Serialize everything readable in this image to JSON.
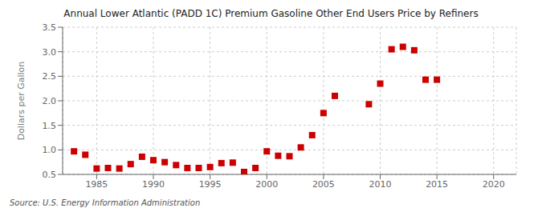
{
  "chart_data": {
    "type": "scatter",
    "title": "Annual Lower Atlantic (PADD 1C) Premium Gasoline Other End Users Price by Refiners",
    "ylabel": "Dollars per Gallon",
    "source": "Source: U.S. Energy Information Administration",
    "x": [
      1983,
      1984,
      1985,
      1986,
      1987,
      1988,
      1989,
      1990,
      1991,
      1992,
      1993,
      1994,
      1995,
      1996,
      1997,
      1998,
      1999,
      2000,
      2001,
      2002,
      2003,
      2004,
      2005,
      2006,
      2009,
      2010,
      2011,
      2012,
      2013,
      2014,
      2015
    ],
    "values": [
      0.97,
      0.9,
      0.62,
      0.63,
      0.62,
      0.71,
      0.86,
      0.79,
      0.75,
      0.69,
      0.63,
      0.63,
      0.65,
      0.73,
      0.74,
      0.55,
      0.63,
      0.97,
      0.88,
      0.87,
      1.05,
      1.3,
      1.75,
      2.1,
      1.93,
      2.35,
      3.05,
      3.1,
      3.03,
      2.43,
      2.43
    ],
    "color": "#cc0000",
    "marker": "square",
    "xlim": [
      1982,
      2022
    ],
    "ylim": [
      0.5,
      3.5
    ],
    "xticks": [
      1985,
      1990,
      1995,
      2000,
      2005,
      2010,
      2015,
      2020
    ],
    "yticks": [
      0.5,
      {
        "value": 1.0,
        "label": "1.0"
      },
      1.5,
      {
        "value": 2.0,
        "label": "2.0"
      },
      2.5,
      {
        "value": 3.0,
        "label": "3.0"
      },
      3.5
    ],
    "grid": true
  }
}
